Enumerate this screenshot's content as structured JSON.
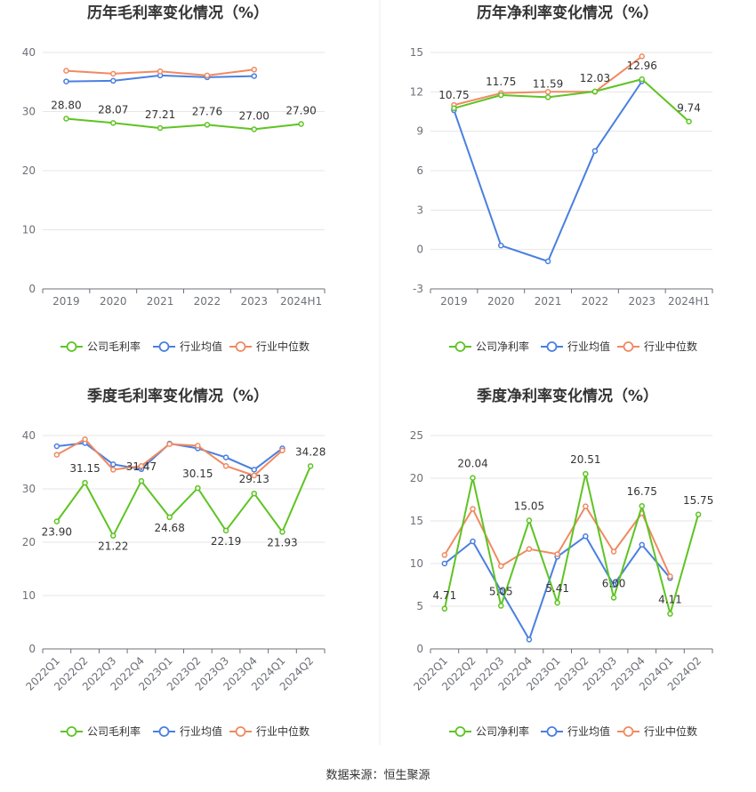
{
  "source": "数据来源：恒生聚源",
  "colors": {
    "company": "#5ec423",
    "industry_avg": "#4a7fe0",
    "industry_median": "#f08a62",
    "grid": "#e6e6e6",
    "axis": "#6e7079"
  },
  "chart_data": [
    {
      "type": "line",
      "title": "历年毛利率变化情况（%）",
      "categories": [
        "2019",
        "2020",
        "2021",
        "2022",
        "2023",
        "2024H1"
      ],
      "ylim": [
        0,
        40
      ],
      "yticks": [
        0,
        10,
        20,
        30,
        40
      ],
      "rotate_labels": false,
      "series": [
        {
          "name": "公司毛利率",
          "key": "company",
          "values": [
            28.8,
            28.07,
            27.21,
            27.76,
            27.0,
            27.9
          ],
          "labels": [
            "28.80",
            "28.07",
            "27.21",
            "27.76",
            "27.00",
            "27.90"
          ]
        },
        {
          "name": "行业均值",
          "key": "industry_avg",
          "values": [
            35.1,
            35.2,
            36.1,
            35.8,
            36.0,
            null
          ]
        },
        {
          "name": "行业中位数",
          "key": "industry_median",
          "values": [
            36.9,
            36.4,
            36.8,
            36.1,
            37.1,
            null
          ]
        }
      ]
    },
    {
      "type": "line",
      "title": "历年净利率变化情况（%）",
      "categories": [
        "2019",
        "2020",
        "2021",
        "2022",
        "2023",
        "2024H1"
      ],
      "ylim": [
        -3,
        15
      ],
      "yticks": [
        -3,
        0,
        3,
        6,
        9,
        12,
        15
      ],
      "rotate_labels": false,
      "series": [
        {
          "name": "公司净利率",
          "key": "company",
          "values": [
            10.75,
            11.75,
            11.59,
            12.03,
            12.96,
            9.74
          ],
          "labels": [
            "10.75",
            "11.75",
            "11.59",
            "12.03",
            "12.96",
            "9.74"
          ]
        },
        {
          "name": "行业均值",
          "key": "industry_avg",
          "values": [
            10.6,
            0.3,
            -0.9,
            7.5,
            12.8,
            null
          ]
        },
        {
          "name": "行业中位数",
          "key": "industry_median",
          "values": [
            11.0,
            11.9,
            12.0,
            12.0,
            14.7,
            null
          ]
        }
      ]
    },
    {
      "type": "line",
      "title": "季度毛利率变化情况（%）",
      "categories": [
        "2022Q1",
        "2022Q2",
        "2022Q3",
        "2022Q4",
        "2023Q1",
        "2023Q2",
        "2023Q3",
        "2023Q4",
        "2024Q1",
        "2024Q2"
      ],
      "ylim": [
        0,
        40
      ],
      "yticks": [
        0,
        10,
        20,
        30,
        40
      ],
      "rotate_labels": true,
      "series": [
        {
          "name": "公司毛利率",
          "key": "company",
          "values": [
            23.9,
            31.15,
            21.22,
            31.47,
            24.68,
            30.15,
            22.19,
            29.13,
            21.93,
            34.28
          ],
          "labels": [
            "23.90",
            "31.15",
            "21.22",
            "31.47",
            "24.68",
            "30.15",
            "22.19",
            "29.13",
            "21.93",
            "34.28"
          ]
        },
        {
          "name": "行业均值",
          "key": "industry_avg",
          "values": [
            38.0,
            38.6,
            34.6,
            33.7,
            38.5,
            37.6,
            35.9,
            33.6,
            37.6,
            null
          ]
        },
        {
          "name": "行业中位数",
          "key": "industry_median",
          "values": [
            36.4,
            39.3,
            33.6,
            34.3,
            38.4,
            38.1,
            34.3,
            32.5,
            37.2,
            null
          ]
        }
      ]
    },
    {
      "type": "line",
      "title": "季度净利率变化情况（%）",
      "categories": [
        "2022Q1",
        "2022Q2",
        "2022Q3",
        "2022Q4",
        "2023Q1",
        "2023Q2",
        "2023Q3",
        "2023Q4",
        "2024Q1",
        "2024Q2"
      ],
      "ylim": [
        0,
        25
      ],
      "yticks": [
        0,
        5,
        10,
        15,
        20,
        25
      ],
      "rotate_labels": true,
      "series": [
        {
          "name": "公司净利率",
          "key": "company",
          "values": [
            4.71,
            20.04,
            5.05,
            15.05,
            5.41,
            20.51,
            6.0,
            16.75,
            4.11,
            15.75
          ],
          "labels": [
            "4.71",
            "20.04",
            "5.05",
            "15.05",
            "5.41",
            "20.51",
            "6.00",
            "16.75",
            "4.11",
            "15.75"
          ]
        },
        {
          "name": "行业均值",
          "key": "industry_avg",
          "values": [
            10.0,
            12.6,
            6.8,
            1.1,
            10.8,
            13.2,
            7.5,
            12.2,
            8.3,
            null
          ]
        },
        {
          "name": "行业中位数",
          "key": "industry_median",
          "values": [
            11.0,
            16.4,
            9.7,
            11.7,
            11.1,
            16.7,
            11.4,
            15.9,
            8.5,
            null
          ]
        }
      ]
    }
  ]
}
